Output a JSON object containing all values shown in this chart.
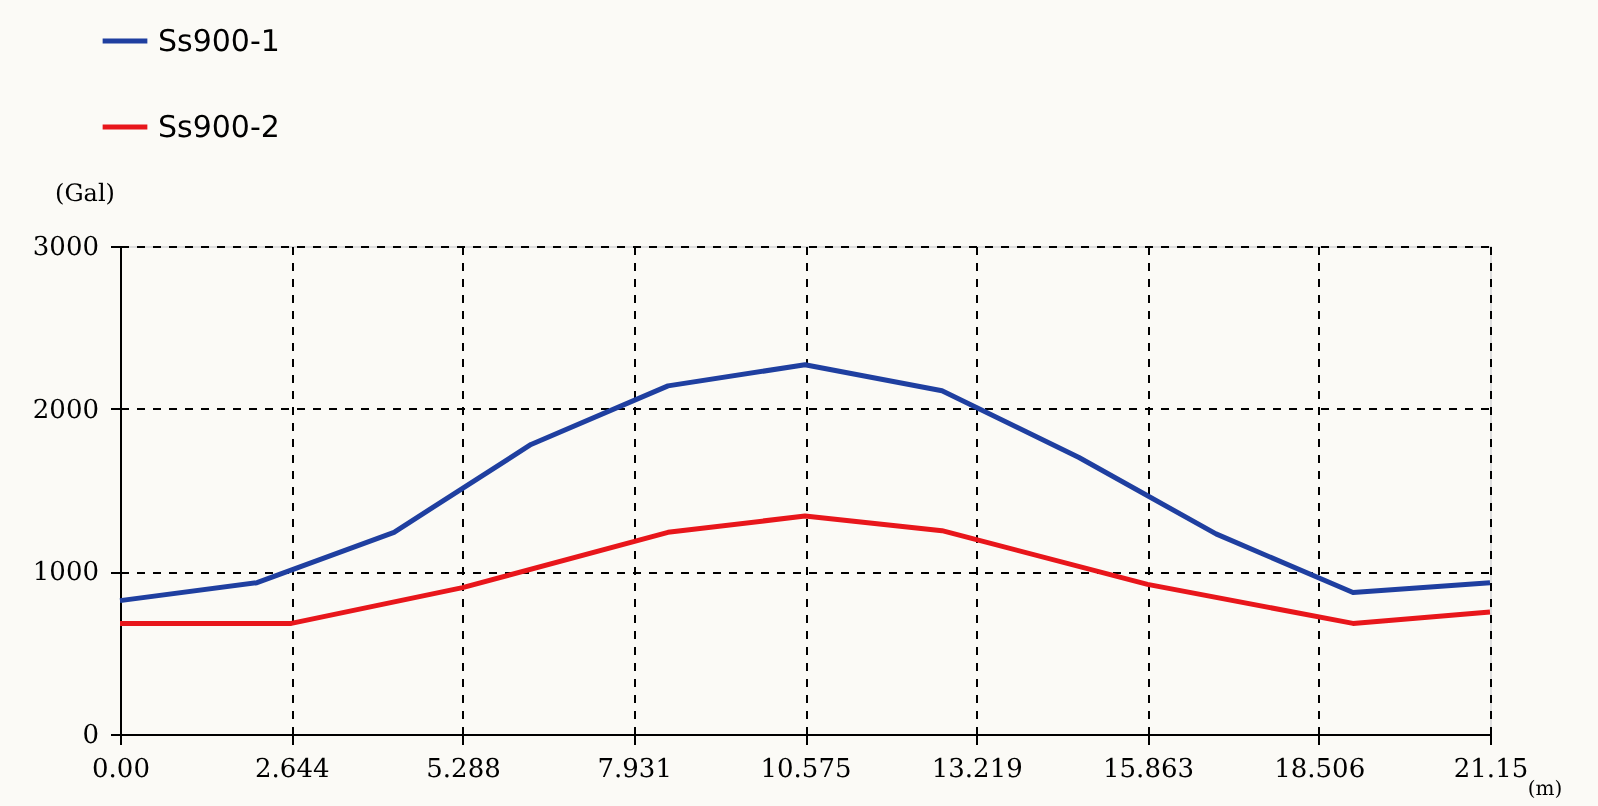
{
  "chart_data": {
    "type": "line",
    "xlabel": "(m)",
    "ylabel": "(Gal)",
    "xlim": [
      0,
      21.15
    ],
    "xticks": [
      {
        "value": 0,
        "label": "0.00"
      },
      2.644,
      5.288,
      7.931,
      10.575,
      13.219,
      15.863,
      18.506,
      21.15
    ],
    "ylim": [
      0,
      3000
    ],
    "yticks": [
      0,
      1000,
      2000,
      3000
    ],
    "grid": true,
    "legend": "top left",
    "marker": "none",
    "line_style": "solid",
    "series": [
      {
        "name": "Ss900-1",
        "color": "#1f3fa0",
        "x": [
          0,
          2.115,
          4.23,
          6.345,
          8.46,
          10.575,
          12.69,
          14.805,
          16.92,
          19.035,
          21.15
        ],
        "values": [
          820,
          930,
          1240,
          1780,
          2140,
          2270,
          2110,
          1700,
          1230,
          870,
          930
        ]
      },
      {
        "name": "Ss900-2",
        "color": "#e8161b",
        "x": [
          0,
          2.644,
          5.288,
          8.46,
          10.575,
          12.69,
          15.863,
          19.035,
          21.15
        ],
        "values": [
          680,
          680,
          900,
          1240,
          1340,
          1250,
          920,
          680,
          750
        ]
      }
    ]
  }
}
